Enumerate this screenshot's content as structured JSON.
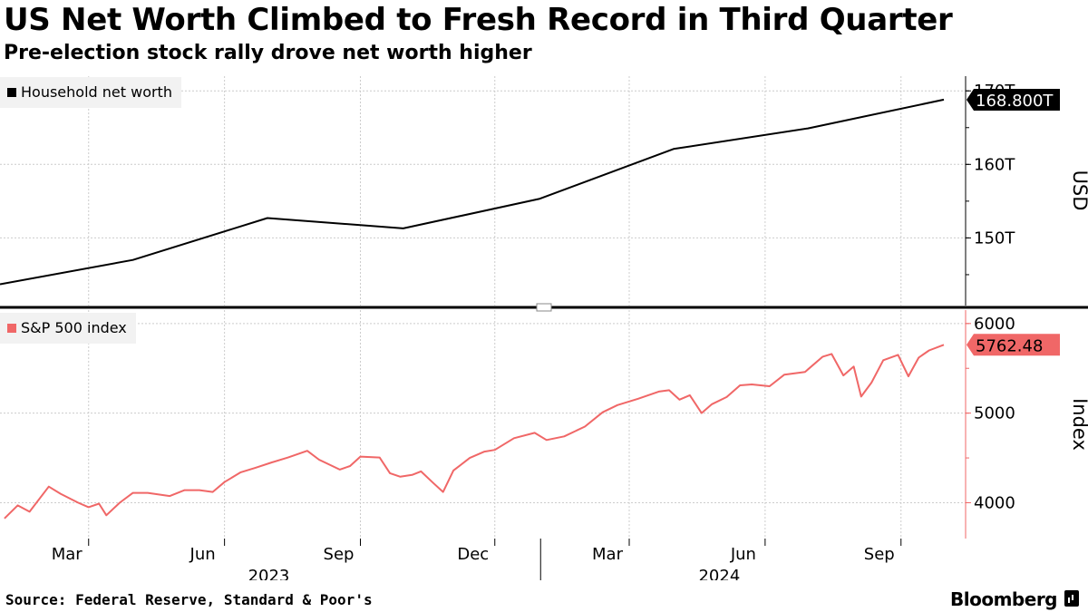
{
  "title": "US Net Worth Climbed to Fresh Record in Third Quarter",
  "subtitle": "Pre-election stock rally drove net worth higher",
  "source": "Source: Federal Reserve, Standard & Poor's",
  "brand": "Bloomberg",
  "colors": {
    "net_worth": "#000000",
    "sp500": "#f06767",
    "grid": "#cccccc",
    "legend_bg": "#f2f2f2"
  },
  "x_axis": {
    "month_ticks": [
      {
        "label": "Mar",
        "date": "2023-03-01"
      },
      {
        "label": "Jun",
        "date": "2023-06-01"
      },
      {
        "label": "Sep",
        "date": "2023-09-01"
      },
      {
        "label": "Dec",
        "date": "2023-12-01"
      },
      {
        "label": "Mar",
        "date": "2024-03-01"
      },
      {
        "label": "Jun",
        "date": "2024-06-01"
      },
      {
        "label": "Sep",
        "date": "2024-09-01"
      }
    ],
    "year_labels": [
      {
        "label": "2023",
        "date": "2023-07-01"
      },
      {
        "label": "2024",
        "date": "2024-05-01"
      }
    ],
    "range": [
      "2022-12-31",
      "2024-09-30"
    ]
  },
  "chart_data": [
    {
      "type": "line",
      "legend": "Household net worth",
      "ylabel": "USD",
      "ylim": [
        140.8,
        172
      ],
      "yticks": [
        {
          "value": 150,
          "label": "150T"
        },
        {
          "value": 160,
          "label": "160T"
        },
        {
          "value": 170,
          "label": "170T"
        }
      ],
      "last_value_label": "168.800T",
      "series": [
        {
          "x": [
            "2022-12-31",
            "2023-03-31",
            "2023-06-30",
            "2023-09-30",
            "2023-12-31",
            "2024-03-31",
            "2024-06-30",
            "2024-09-30"
          ],
          "values": [
            143.7,
            147.0,
            152.7,
            151.3,
            155.3,
            162.1,
            164.9,
            168.8
          ]
        }
      ]
    },
    {
      "type": "line",
      "legend": "S&P 500 index",
      "ylabel": "Index",
      "ylim": [
        3600,
        6150
      ],
      "yticks": [
        {
          "value": 4000,
          "label": "4000"
        },
        {
          "value": 5000,
          "label": "5000"
        },
        {
          "value": 6000,
          "label": "6000"
        }
      ],
      "last_value_label": "5762.48",
      "series": [
        {
          "x": [
            "2023-01-03",
            "2023-01-12",
            "2023-01-20",
            "2023-02-02",
            "2023-02-10",
            "2023-02-22",
            "2023-03-01",
            "2023-03-08",
            "2023-03-13",
            "2023-03-22",
            "2023-03-31",
            "2023-04-10",
            "2023-04-25",
            "2023-05-05",
            "2023-05-15",
            "2023-05-24",
            "2023-06-01",
            "2023-06-12",
            "2023-06-22",
            "2023-07-03",
            "2023-07-14",
            "2023-07-27",
            "2023-08-04",
            "2023-08-18",
            "2023-08-25",
            "2023-09-01",
            "2023-09-14",
            "2023-09-21",
            "2023-09-28",
            "2023-10-06",
            "2023-10-12",
            "2023-10-20",
            "2023-10-27",
            "2023-11-03",
            "2023-11-14",
            "2023-11-24",
            "2023-12-01",
            "2023-12-14",
            "2023-12-28",
            "2024-01-05",
            "2024-01-17",
            "2024-01-31",
            "2024-02-12",
            "2024-02-22",
            "2024-03-07",
            "2024-03-21",
            "2024-03-28",
            "2024-04-04",
            "2024-04-11",
            "2024-04-19",
            "2024-04-26",
            "2024-05-06",
            "2024-05-15",
            "2024-05-23",
            "2024-06-04",
            "2024-06-14",
            "2024-06-28",
            "2024-07-10",
            "2024-07-16",
            "2024-07-24",
            "2024-07-31",
            "2024-08-05",
            "2024-08-12",
            "2024-08-20",
            "2024-08-30",
            "2024-09-06",
            "2024-09-13",
            "2024-09-20",
            "2024-09-30"
          ],
          "values": [
            3825,
            3970,
            3900,
            4180,
            4100,
            4000,
            3950,
            3990,
            3860,
            4000,
            4110,
            4110,
            4075,
            4140,
            4140,
            4120,
            4230,
            4340,
            4390,
            4450,
            4505,
            4580,
            4480,
            4370,
            4410,
            4515,
            4505,
            4330,
            4290,
            4310,
            4350,
            4225,
            4120,
            4360,
            4500,
            4570,
            4590,
            4720,
            4780,
            4700,
            4740,
            4850,
            5010,
            5090,
            5160,
            5240,
            5255,
            5150,
            5200,
            5000,
            5100,
            5180,
            5310,
            5320,
            5300,
            5430,
            5460,
            5630,
            5660,
            5420,
            5520,
            5185,
            5340,
            5590,
            5650,
            5410,
            5620,
            5700,
            5762.48
          ]
        }
      ]
    }
  ]
}
